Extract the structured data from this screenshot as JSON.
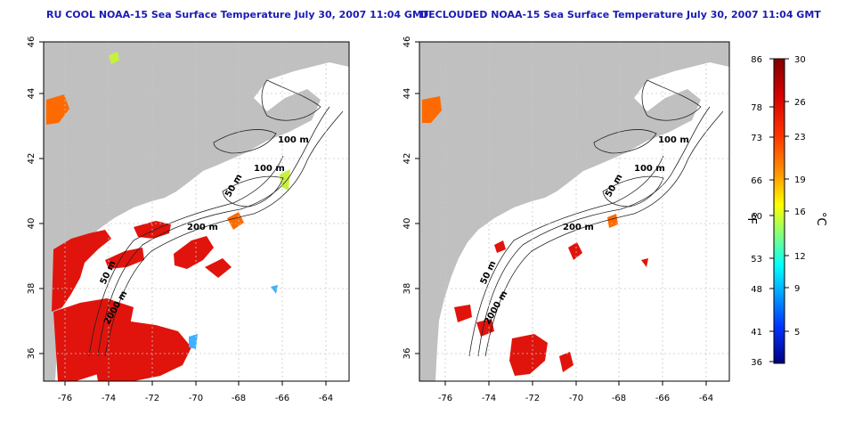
{
  "left_panel": {
    "title": "RU COOL NOAA-15 Sea Surface Temperature July 30, 2007 11:04 GMT",
    "x_ticks": [
      "-76",
      "-74",
      "-72",
      "-70",
      "-68",
      "-66",
      "-64"
    ],
    "y_ticks": [
      "36",
      "38",
      "40",
      "42",
      "44",
      "46"
    ],
    "contour_labels": [
      "100 m",
      "100 m",
      "50 m",
      "200 m",
      "50 m",
      "2000 m"
    ]
  },
  "right_panel": {
    "title": "DECLOUDED NOAA-15 Sea Surface Temperature July 30, 2007 11:04 GMT",
    "x_ticks": [
      "-76",
      "-74",
      "-72",
      "-70",
      "-68",
      "-66",
      "-64"
    ],
    "y_ticks": [
      "36",
      "38",
      "40",
      "42",
      "44",
      "46"
    ],
    "contour_labels": [
      "100 m",
      "100 m",
      "50 m",
      "200 m",
      "50 m",
      "2000 m"
    ]
  },
  "colorbar": {
    "fahrenheit_ticks": [
      "86",
      "78",
      "73",
      "66",
      "60",
      "53",
      "48",
      "41",
      "36"
    ],
    "celsius_ticks": [
      "30",
      "26",
      "23",
      "19",
      "16",
      "12",
      "9",
      "5"
    ],
    "fahrenheit_label": "°F",
    "celsius_label": "°C"
  },
  "colors": {
    "land": "#c0c0c0",
    "ocean": "#ffffff",
    "title": "#1c1cb4",
    "warm_sst": "#e0140c",
    "grid": "#c8c8c8"
  }
}
